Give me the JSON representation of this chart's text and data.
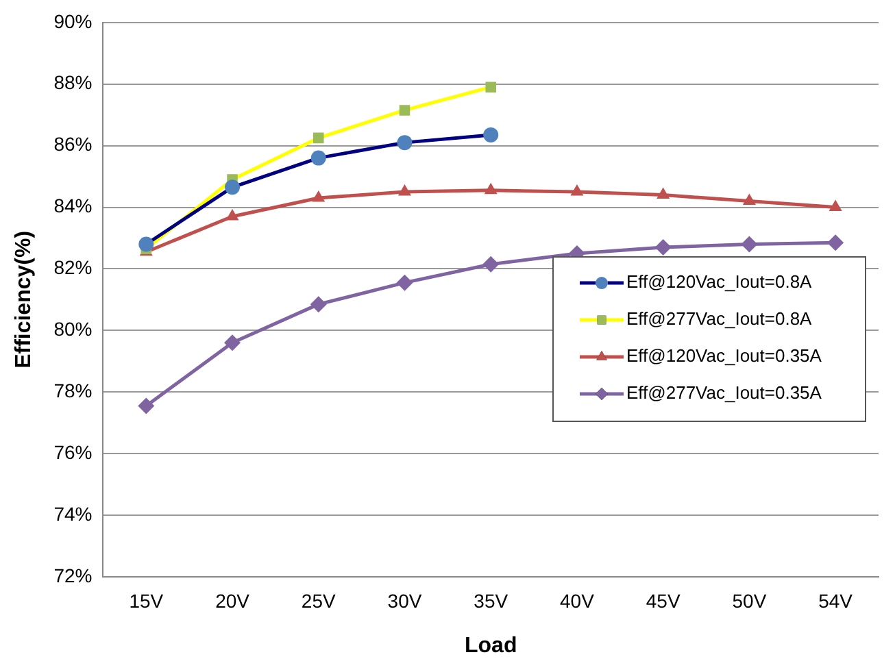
{
  "chart_data": {
    "type": "line",
    "xlabel": "Load",
    "ylabel": "Efficiency(%)",
    "categories": [
      "15V",
      "20V",
      "25V",
      "30V",
      "35V",
      "40V",
      "45V",
      "50V",
      "54V"
    ],
    "series": [
      {
        "name": "Eff@120Vac_Iout=0.8A",
        "color": "#000080",
        "colors": [
          "#4f81bd",
          "#4f81bd",
          "#4f81bd",
          "#4f81bd",
          "#4f81bd",
          null,
          null,
          null,
          null
        ],
        "marker": "circle",
        "values": [
          82.8,
          84.65,
          85.6,
          86.1,
          86.35,
          null,
          null,
          null,
          null
        ]
      },
      {
        "name": "Eff@277Vac_Iout=0.8A",
        "color": "#ffff00",
        "colors": [
          "#9bbb59",
          "#9bbb59",
          "#9bbb59",
          "#9bbb59",
          "#9bbb59",
          null,
          null,
          null,
          null
        ],
        "marker": "square",
        "values": [
          82.65,
          84.9,
          86.25,
          87.15,
          87.9,
          null,
          null,
          null,
          null
        ]
      },
      {
        "name": "Eff@120Vac_Iout=0.35A",
        "color": "#c0504d",
        "marker": "triangle",
        "values": [
          82.55,
          83.7,
          84.3,
          84.5,
          84.55,
          84.5,
          84.4,
          84.2,
          84.0
        ]
      },
      {
        "name": "Eff@277Vac_Iout=0.35A",
        "color": "#8064a2",
        "marker": "diamond",
        "values": [
          77.55,
          79.6,
          80.85,
          81.55,
          82.15,
          82.5,
          82.7,
          82.8,
          82.85
        ]
      }
    ],
    "ylim": [
      72,
      90
    ],
    "yticks": [
      {
        "value": 72,
        "label": "72%"
      },
      {
        "value": 74,
        "label": "74%"
      },
      {
        "value": 76,
        "label": "76%"
      },
      {
        "value": 78,
        "label": "78%"
      },
      {
        "value": 80,
        "label": "80%"
      },
      {
        "value": 82,
        "label": "82%"
      },
      {
        "value": 84,
        "label": "84%"
      },
      {
        "value": 86,
        "label": "86%"
      },
      {
        "value": 88,
        "label": "88%"
      },
      {
        "value": 90,
        "label": "90%"
      }
    ],
    "grid": "y",
    "legend": "right",
    "line_style": "solid"
  }
}
